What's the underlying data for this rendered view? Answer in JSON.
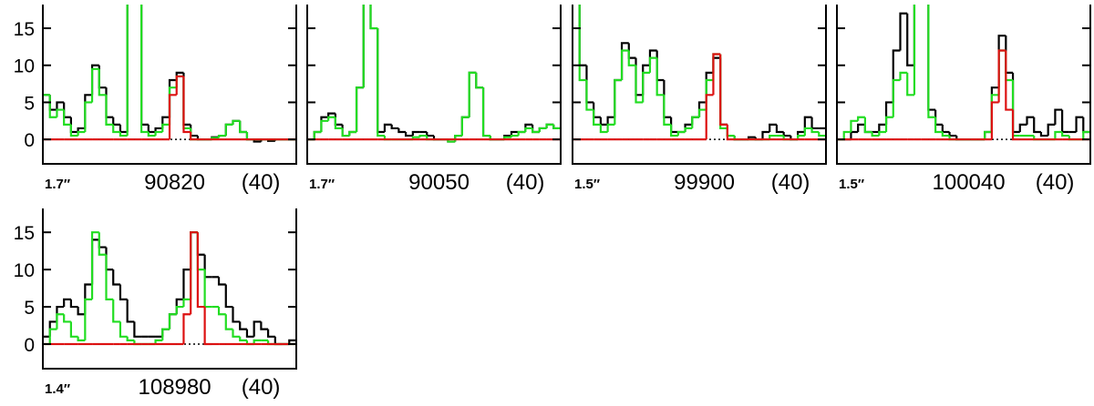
{
  "chart_data": [
    {
      "type": "line",
      "beam": "1.7″",
      "title": "90820",
      "note": "(40)",
      "ylim": [
        -3.3,
        18.2
      ],
      "yticks": [
        0,
        5,
        10,
        15
      ],
      "ytick_labels": true,
      "zero_line": true,
      "step": true,
      "series": [
        {
          "color": "#000000",
          "values": [
            6,
            4,
            5,
            3,
            1,
            1.5,
            6,
            10,
            7,
            3,
            2,
            1,
            20,
            20,
            2,
            1,
            1.5,
            3,
            8,
            9,
            2,
            0.5,
            0,
            0,
            0.3,
            0.5,
            2,
            2.5,
            1,
            0,
            -0.3,
            0,
            -0.2,
            0,
            0,
            0
          ]
        },
        {
          "color": "#22dd22",
          "values": [
            6,
            3,
            4,
            2,
            0.5,
            1,
            5,
            9.5,
            6,
            2,
            1,
            0.5,
            20,
            20,
            1,
            0.5,
            1,
            2,
            7,
            8.5,
            1.5,
            0,
            0,
            0,
            0.2,
            0.5,
            2,
            2.5,
            1,
            0,
            0,
            0,
            0,
            0,
            0,
            0
          ]
        },
        {
          "color": "#dd1111",
          "values": [
            0,
            0,
            0,
            0,
            0,
            0,
            0,
            0,
            0,
            0,
            0,
            0,
            0,
            0,
            0,
            0,
            0,
            0,
            6,
            8.5,
            1,
            0,
            0,
            0,
            0,
            0,
            0,
            0,
            0,
            0,
            0,
            0,
            0,
            0,
            0,
            0
          ]
        }
      ]
    },
    {
      "type": "line",
      "beam": "1.7″",
      "title": "90050",
      "note": "(40)",
      "ylim": [
        -3.3,
        18.2
      ],
      "yticks": [
        0,
        5,
        10,
        15
      ],
      "ytick_labels": false,
      "zero_line": true,
      "step": true,
      "series": [
        {
          "color": "#000000",
          "values": [
            0,
            1,
            3,
            3.5,
            2,
            0.5,
            1,
            7,
            20,
            15,
            1,
            2,
            1.5,
            1,
            0.5,
            1,
            1,
            0.5,
            0,
            0,
            -0.3,
            0.5,
            3,
            9,
            7,
            0.5,
            0,
            0,
            0.5,
            1,
            1,
            2,
            1,
            1.5,
            2,
            1.5
          ]
        },
        {
          "color": "#22dd22",
          "values": [
            0,
            1,
            2.5,
            3,
            1.5,
            0.5,
            1,
            7,
            20,
            15,
            0.5,
            0,
            0,
            0,
            0,
            0.3,
            0.5,
            0,
            0,
            0,
            -0.3,
            0.5,
            3,
            9,
            7,
            0.5,
            0,
            0,
            0.3,
            0.5,
            1,
            1.5,
            1,
            1.5,
            2,
            1.5
          ]
        },
        {
          "color": "#dd1111",
          "values": [
            0,
            0,
            0,
            0,
            0,
            0,
            0,
            0,
            0,
            0,
            0,
            0,
            0,
            0,
            0,
            0,
            0,
            0,
            0,
            0,
            0,
            0,
            0,
            0,
            0,
            0,
            0,
            0,
            0,
            0,
            0,
            0,
            0,
            0,
            0,
            0
          ]
        }
      ]
    },
    {
      "type": "line",
      "beam": "1.5″",
      "title": "99900",
      "note": "(40)",
      "ylim": [
        -3.3,
        18.2
      ],
      "yticks": [
        0,
        5,
        10,
        15
      ],
      "ytick_labels": false,
      "zero_line": true,
      "step": true,
      "series": [
        {
          "color": "#000000",
          "values": [
            20,
            10,
            5,
            3,
            2,
            3,
            8,
            13,
            11,
            6,
            10,
            12,
            8,
            3,
            1,
            1,
            2,
            3,
            5,
            9,
            11,
            2,
            0.5,
            0,
            0,
            0.3,
            0,
            1,
            2,
            1,
            0.5,
            0,
            1,
            3,
            1.5,
            1.5
          ]
        },
        {
          "color": "#22dd22",
          "values": [
            20,
            8,
            4,
            2,
            1,
            2,
            8,
            12,
            10,
            5,
            9,
            11,
            6,
            2,
            0.5,
            1,
            1.5,
            3,
            4,
            8,
            11.5,
            1.5,
            0.5,
            0,
            0,
            0,
            0,
            0,
            0.5,
            0.5,
            0,
            0,
            0.5,
            1.5,
            1,
            0.5
          ]
        },
        {
          "color": "#dd1111",
          "values": [
            0,
            0,
            0,
            0,
            0,
            0,
            0,
            0,
            0,
            0,
            0,
            0,
            0,
            0,
            0,
            0,
            0,
            0,
            0,
            6,
            11.5,
            2,
            0,
            0,
            0,
            0,
            0,
            0,
            0,
            0,
            0,
            0,
            0,
            0,
            0,
            0
          ]
        }
      ]
    },
    {
      "type": "line",
      "beam": "1.5″",
      "title": "100040",
      "note": "(40)",
      "ylim": [
        -3.3,
        18.2
      ],
      "yticks": [
        0,
        5,
        10,
        15
      ],
      "ytick_labels": false,
      "zero_line": true,
      "step": true,
      "series": [
        {
          "color": "#000000",
          "values": [
            0,
            0,
            1,
            2,
            1,
            1,
            2,
            5,
            12,
            17,
            10,
            20,
            20,
            4,
            2,
            1,
            0.5,
            0,
            0,
            0,
            0,
            1,
            7,
            14,
            9,
            1,
            2,
            3,
            1,
            0.5,
            2,
            4,
            1,
            1,
            3,
            1
          ]
        },
        {
          "color": "#22dd22",
          "values": [
            0,
            1,
            2.5,
            3,
            1,
            0.5,
            1,
            3,
            8,
            9,
            6,
            20,
            20,
            3,
            1,
            0.5,
            0,
            0,
            0,
            0,
            0,
            1,
            6,
            12,
            8,
            0.5,
            0.5,
            0.5,
            0,
            0,
            0,
            1,
            0.5,
            0,
            0,
            1
          ]
        },
        {
          "color": "#dd1111",
          "values": [
            0,
            0,
            0,
            0,
            0,
            0,
            0,
            0,
            0,
            0,
            0,
            0,
            0,
            0,
            0,
            0,
            0,
            0,
            0,
            0,
            0,
            0,
            5,
            12,
            4,
            0,
            0,
            0,
            0,
            0,
            0,
            0,
            0,
            0,
            0,
            0
          ]
        }
      ]
    },
    {
      "type": "line",
      "beam": "1.4″",
      "title": "108980",
      "note": "(40)",
      "ylim": [
        -3.3,
        18.2
      ],
      "yticks": [
        0,
        5,
        10,
        15
      ],
      "ytick_labels": true,
      "zero_line": true,
      "step": true,
      "series": [
        {
          "color": "#000000",
          "values": [
            1,
            3,
            5,
            6,
            5,
            4,
            8,
            14,
            13,
            10,
            8,
            6,
            3,
            1,
            1,
            1,
            1,
            2,
            4,
            6,
            10,
            15,
            12,
            9,
            9,
            8,
            5,
            3,
            2,
            1,
            3,
            2,
            1,
            0,
            0,
            0.5
          ]
        },
        {
          "color": "#22dd22",
          "values": [
            0,
            2,
            4,
            3,
            1,
            0.5,
            6,
            15,
            12,
            6,
            3,
            1,
            0.5,
            0,
            0,
            0,
            0.5,
            2,
            4,
            5,
            6,
            15,
            10,
            5,
            5,
            4,
            2,
            1,
            0.5,
            0,
            0.5,
            0.5,
            0,
            0,
            0,
            0
          ]
        },
        {
          "color": "#dd1111",
          "values": [
            0,
            0,
            0,
            0,
            0,
            0,
            0,
            0,
            0,
            0,
            0,
            0,
            0,
            0,
            0,
            0,
            0,
            0,
            0,
            0,
            4,
            15,
            5,
            0,
            0,
            0,
            0,
            0,
            0,
            0,
            0,
            0,
            0,
            0,
            0,
            0
          ]
        }
      ]
    }
  ]
}
